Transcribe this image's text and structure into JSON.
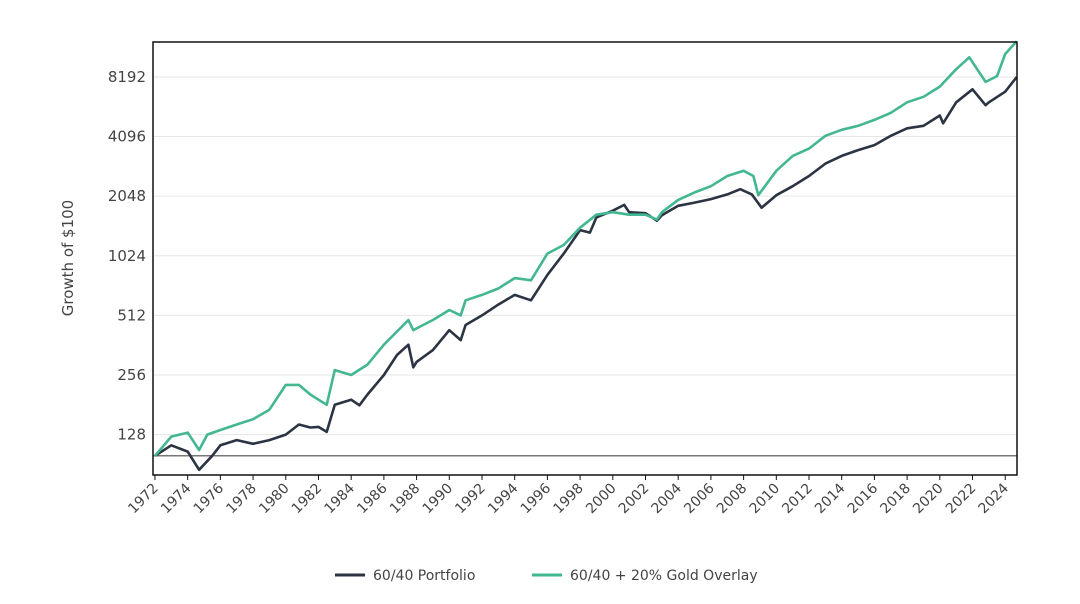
{
  "chart_data": {
    "type": "line",
    "title": "",
    "xlabel": "",
    "ylabel": "Growth of $100",
    "yscale": "log2",
    "ylim": [
      80,
      12300
    ],
    "xlim": [
      1971.88,
      2024.72
    ],
    "grid": "horizontal",
    "legend_position": "bottom",
    "baseline": 100,
    "yticks": [
      128,
      256,
      512,
      1024,
      2048,
      4096,
      8192
    ],
    "ytick_labels": [
      "128",
      "256",
      "512",
      "1024",
      "2048",
      "4096",
      "8192"
    ],
    "xticks": [
      "1972",
      "1974",
      "1976",
      "1978",
      "1980",
      "1982",
      "1984",
      "1986",
      "1988",
      "1990",
      "1992",
      "1994",
      "1996",
      "1998",
      "2000",
      "2002",
      "2004",
      "2006",
      "2008",
      "2010",
      "2012",
      "2014",
      "2016",
      "2018",
      "2020",
      "2022",
      "2024"
    ],
    "series": [
      {
        "name": "60/40 Portfolio",
        "color": "#2c3444",
        "x": [
          1972,
          1973,
          1974,
          1974.7,
          1975.5,
          1976,
          1977,
          1978,
          1979,
          1980,
          1980.8,
          1981.5,
          1982,
          1982.5,
          1983,
          1984,
          1984.5,
          1985,
          1986,
          1986.8,
          1987.5,
          1987.8,
          1988,
          1989,
          1990,
          1990.7,
          1991,
          1992,
          1993,
          1994,
          1995,
          1996,
          1997,
          1998,
          1998.6,
          1999,
          2000,
          2000.7,
          2001,
          2002,
          2002.7,
          2003,
          2004,
          2005,
          2006,
          2007,
          2007.8,
          2008.5,
          2009.1,
          2010,
          2011,
          2012,
          2013,
          2014,
          2015,
          2016,
          2017,
          2018,
          2019,
          2020,
          2020.2,
          2021,
          2022,
          2022.8,
          2023,
          2024,
          2024.7
        ],
        "y": [
          100,
          113,
          105,
          85,
          100,
          113,
          120,
          115,
          120,
          128,
          144,
          139,
          140,
          132,
          181,
          192,
          180,
          204,
          256,
          323,
          364,
          280,
          298,
          342,
          431,
          384,
          458,
          512,
          580,
          650,
          610,
          820,
          1050,
          1380,
          1340,
          1600,
          1730,
          1850,
          1700,
          1680,
          1540,
          1640,
          1830,
          1900,
          1980,
          2090,
          2220,
          2090,
          1790,
          2070,
          2300,
          2590,
          2990,
          3270,
          3500,
          3710,
          4130,
          4510,
          4640,
          5230,
          4780,
          6100,
          7100,
          5900,
          6100,
          6900,
          8190
        ]
      },
      {
        "name": "60/40 + 20% Gold Overlay",
        "color": "#43b692",
        "x": [
          1972,
          1973,
          1974,
          1974.7,
          1975.2,
          1976,
          1977,
          1978,
          1979,
          1980,
          1980.8,
          1981.5,
          1982.5,
          1983,
          1984,
          1985,
          1986,
          1987.5,
          1987.8,
          1988,
          1989,
          1990,
          1990.7,
          1991,
          1992,
          1993,
          1994,
          1995,
          1996,
          1997,
          1998,
          1999,
          2000,
          2001,
          2002,
          2002.7,
          2003,
          2004,
          2005,
          2006,
          2007,
          2008,
          2008.6,
          2008.9,
          2010,
          2011,
          2012,
          2013,
          2014,
          2015,
          2016,
          2017,
          2018,
          2019,
          2020,
          2021,
          2021.8,
          2022.8,
          2023.5,
          2024,
          2024.7
        ],
        "y": [
          100,
          125,
          131,
          107,
          128,
          135,
          144,
          153,
          171,
          228,
          228,
          204,
          181,
          271,
          256,
          289,
          364,
          485,
          431,
          440,
          485,
          545,
          512,
          610,
          650,
          700,
          790,
          770,
          1050,
          1160,
          1420,
          1650,
          1700,
          1650,
          1650,
          1560,
          1700,
          1960,
          2140,
          2300,
          2590,
          2750,
          2590,
          2070,
          2750,
          3270,
          3560,
          4130,
          4430,
          4640,
          4970,
          5400,
          6100,
          6500,
          7320,
          8960,
          10300,
          7730,
          8270,
          10700,
          12400
        ]
      }
    ]
  }
}
